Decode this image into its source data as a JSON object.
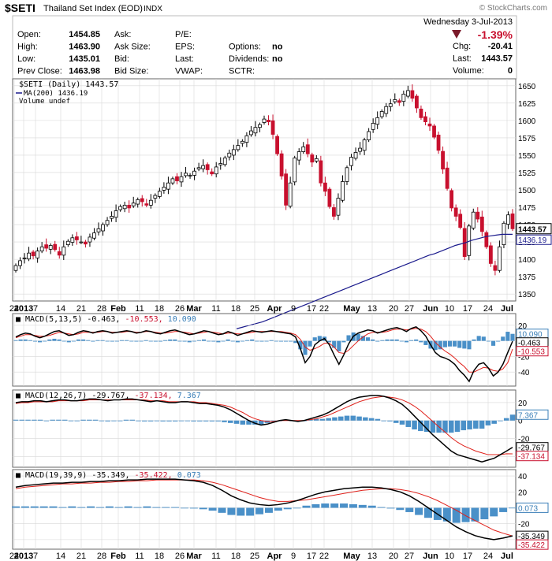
{
  "header": {
    "symbol": "$SETI",
    "name": "Thailand Set Index (EOD)",
    "exchange": "INDX",
    "watermark": "© StockCharts.com",
    "date": "Wednesday   3-Jul-2013",
    "change_pct": "-1.39%",
    "quote": {
      "rows": [
        [
          "Open:",
          "1454.85",
          "Ask:",
          "",
          "P/E:",
          "",
          "",
          ""
        ],
        [
          "High:",
          "1463.90",
          "Ask Size:",
          "",
          "EPS:",
          "",
          "Options:",
          "no"
        ],
        [
          "Low:",
          "1435.01",
          "Bid:",
          "",
          "Last:",
          "",
          "Dividends:",
          "no"
        ],
        [
          "Prev Close:",
          "1463.98",
          "Bid Size:",
          "",
          "VWAP:",
          "",
          "SCTR:",
          ""
        ]
      ],
      "right": [
        [
          "Chg:",
          "-20.41"
        ],
        [
          "Last:",
          "1443.57"
        ],
        [
          "Volume:",
          "0"
        ]
      ]
    }
  },
  "colors": {
    "up": "#000000",
    "down": "#c8102e",
    "ma": "#1a1a8c",
    "signal": "#e0201a",
    "hist": "#4a90c8",
    "grid": "#d8d8d8",
    "label_blue": "#3a7fb8",
    "label_red": "#c8102e"
  },
  "chart_data": [
    {
      "type": "candlestick",
      "legend": [
        "$SETI (Daily) 1443.57",
        "MA(200) 1436.19",
        "Volume undef"
      ],
      "ylim": [
        1340,
        1660
      ],
      "yticks": [
        1350,
        1375,
        1400,
        1425,
        1450,
        1475,
        1500,
        1525,
        1550,
        1575,
        1600,
        1625,
        1650
      ],
      "last_price": "1443.57",
      "ma_label": "1436.19",
      "x_ticks": [
        "24",
        "2013",
        "7",
        "14",
        "21",
        "28",
        "Feb",
        "11",
        "18",
        "26",
        "Mar",
        "11",
        "18",
        "25",
        "Apr",
        "9",
        "17",
        "22",
        "May",
        "13",
        "20",
        "27",
        "Jun",
        "10",
        "17",
        "24",
        "Jul"
      ],
      "bold_ticks": [
        "2013",
        "Feb",
        "Mar",
        "Apr",
        "May",
        "Jun",
        "Jul"
      ],
      "closes": [
        1391,
        1398,
        1402,
        1409,
        1405,
        1412,
        1418,
        1416,
        1420,
        1414,
        1406,
        1418,
        1426,
        1431,
        1428,
        1425,
        1422,
        1432,
        1438,
        1444,
        1450,
        1456,
        1462,
        1470,
        1476,
        1478,
        1474,
        1481,
        1486,
        1483,
        1478,
        1485,
        1492,
        1498,
        1504,
        1510,
        1516,
        1513,
        1519,
        1524,
        1521,
        1527,
        1532,
        1535,
        1529,
        1523,
        1533,
        1538,
        1546,
        1553,
        1558,
        1564,
        1570,
        1578,
        1585,
        1590,
        1594,
        1602,
        1598,
        1580,
        1552,
        1520,
        1478,
        1510,
        1546,
        1555,
        1562,
        1552,
        1540,
        1545,
        1510,
        1498,
        1476,
        1462,
        1488,
        1512,
        1532,
        1547,
        1554,
        1560,
        1572,
        1584,
        1596,
        1604,
        1613,
        1620,
        1624,
        1630,
        1626,
        1638,
        1643,
        1632,
        1618,
        1604,
        1598,
        1592,
        1576,
        1557,
        1530,
        1502,
        1474,
        1462,
        1446,
        1404,
        1448,
        1468,
        1458,
        1440,
        1418,
        1394,
        1384,
        1418,
        1452,
        1464,
        1444
      ],
      "ma200": [
        1300,
        1302,
        1304,
        1306,
        1308,
        1310,
        1313,
        1316,
        1319,
        1322,
        1325,
        1328,
        1331,
        1334,
        1337,
        1340,
        1343,
        1346,
        1349,
        1352,
        1355,
        1358,
        1361,
        1364,
        1367,
        1370,
        1373,
        1376,
        1379,
        1382,
        1385,
        1388,
        1391,
        1394,
        1397,
        1400,
        1403,
        1406,
        1408,
        1411,
        1414,
        1417,
        1420,
        1422,
        1424,
        1427,
        1429,
        1431,
        1433,
        1434,
        1435,
        1436,
        1436,
        1436
      ]
    },
    {
      "type": "line",
      "title": "MACD(5,13,5)",
      "values_label": [
        "-0.463",
        "-10.553",
        "10.090"
      ],
      "ylim": [
        -58,
        35
      ],
      "yticks": [
        20,
        0,
        -20,
        -40
      ],
      "macd": [
        5,
        8,
        10,
        9,
        6,
        4,
        6,
        9,
        12,
        13,
        10,
        7,
        8,
        11,
        13,
        12,
        10,
        12,
        13,
        12,
        10,
        11,
        12,
        13,
        12,
        10,
        11,
        13,
        12,
        10,
        9,
        11,
        13,
        14,
        12,
        10,
        8,
        9,
        11,
        13,
        12,
        10,
        8,
        9,
        12,
        10,
        7,
        9,
        11,
        13,
        12,
        11,
        12,
        13,
        12,
        11,
        10,
        9,
        5,
        -10,
        -28,
        -20,
        -5,
        0,
        3,
        -5,
        -18,
        -30,
        -18,
        -4,
        6,
        10,
        12,
        14,
        13,
        10,
        12,
        14,
        16,
        17,
        15,
        12,
        16,
        18,
        13,
        6,
        -5,
        -15,
        -20,
        -22,
        -25,
        -30,
        -38,
        -44,
        -52,
        -38,
        -30,
        -28,
        -35,
        -45,
        -40,
        -30,
        -15,
        -0.5
      ],
      "signal": [
        4,
        6,
        8,
        8,
        7,
        6,
        6,
        7,
        9,
        11,
        10,
        9,
        8,
        9,
        11,
        11,
        11,
        11,
        12,
        12,
        11,
        11,
        11,
        12,
        12,
        11,
        11,
        12,
        12,
        11,
        10,
        10,
        11,
        12,
        12,
        11,
        10,
        9,
        10,
        11,
        12,
        11,
        10,
        9,
        10,
        10,
        9,
        9,
        10,
        11,
        12,
        12,
        12,
        12,
        12,
        12,
        11,
        10,
        8,
        2,
        -8,
        -12,
        -10,
        -7,
        -3,
        -3,
        -8,
        -15,
        -16,
        -12,
        -6,
        0,
        5,
        9,
        11,
        11,
        11,
        12,
        14,
        15,
        15,
        14,
        15,
        16,
        15,
        12,
        6,
        -2,
        -8,
        -13,
        -17,
        -22,
        -28,
        -33,
        -40,
        -40,
        -37,
        -34,
        -35,
        -38,
        -39,
        -36,
        -28,
        -10.5
      ]
    },
    {
      "type": "line",
      "title": "MACD(12,26,7)",
      "values_label": [
        "-29.767",
        "-37.134",
        "7.367"
      ],
      "ylim": [
        -52,
        34
      ],
      "yticks": [
        20,
        0,
        -20,
        -40
      ],
      "macd": [
        20,
        21,
        21,
        22,
        22,
        21,
        22,
        23,
        23,
        22,
        22,
        23,
        24,
        24,
        23,
        22,
        23,
        23,
        24,
        24,
        23,
        22,
        21,
        22,
        21,
        20,
        20,
        21,
        21,
        20,
        19,
        19,
        18,
        17,
        15,
        12,
        8,
        4,
        0,
        -3,
        -5,
        -4,
        -2,
        0,
        1,
        0,
        -1,
        0,
        2,
        4,
        6,
        9,
        13,
        17,
        21,
        24,
        26,
        27,
        28,
        28,
        27,
        25,
        22,
        18,
        12,
        5,
        -2,
        -9,
        -16,
        -22,
        -28,
        -34,
        -38,
        -40,
        -42,
        -44,
        -46,
        -44,
        -42,
        -38,
        -34,
        -29.8
      ],
      "signal": [
        19,
        20,
        20,
        21,
        21,
        21,
        21,
        22,
        22,
        22,
        22,
        22,
        23,
        23,
        23,
        23,
        23,
        23,
        23,
        23,
        23,
        23,
        22,
        22,
        22,
        21,
        21,
        21,
        21,
        21,
        20,
        20,
        19,
        18,
        17,
        15,
        12,
        9,
        5,
        2,
        0,
        -1,
        -1,
        0,
        0,
        0,
        0,
        0,
        1,
        2,
        4,
        6,
        9,
        12,
        15,
        18,
        21,
        23,
        25,
        26,
        27,
        26,
        25,
        23,
        20,
        16,
        11,
        5,
        -1,
        -7,
        -13,
        -19,
        -24,
        -28,
        -31,
        -34,
        -36,
        -38,
        -38,
        -38,
        -37,
        -37.1
      ]
    },
    {
      "type": "line",
      "title": "MACD(19,39,9)",
      "values_label": [
        "-35.349",
        "-35.422",
        "0.073"
      ],
      "ylim": [
        -52,
        48
      ],
      "yticks": [
        40,
        20,
        0,
        -20,
        -40
      ],
      "macd": [
        26,
        28,
        29,
        30,
        31,
        31,
        32,
        32,
        33,
        33,
        34,
        34,
        35,
        35,
        36,
        36,
        36,
        36,
        35,
        34,
        32,
        28,
        22,
        15,
        10,
        6,
        4,
        3,
        4,
        6,
        9,
        13,
        17,
        20,
        22,
        24,
        25,
        26,
        26,
        25,
        23,
        20,
        15,
        8,
        0,
        -8,
        -16,
        -24,
        -30,
        -35,
        -38,
        -40,
        -38,
        -35.3
      ],
      "signal": [
        24,
        26,
        27,
        28,
        29,
        30,
        30,
        31,
        31,
        32,
        32,
        33,
        33,
        34,
        34,
        35,
        35,
        35,
        35,
        35,
        34,
        32,
        29,
        25,
        21,
        17,
        13,
        10,
        8,
        8,
        9,
        10,
        12,
        14,
        16,
        18,
        20,
        22,
        23,
        24,
        24,
        23,
        21,
        18,
        14,
        9,
        3,
        -3,
        -10,
        -16,
        -22,
        -28,
        -32,
        -35.4
      ]
    }
  ]
}
